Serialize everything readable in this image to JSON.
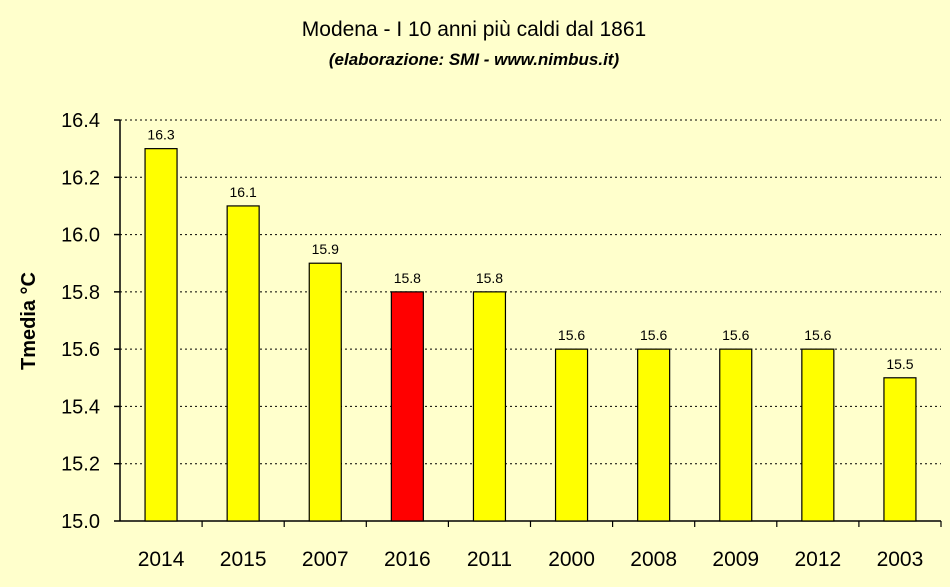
{
  "chart_data": {
    "type": "bar",
    "title": "Modena - I 10 anni più caldi dal 1861",
    "subtitle": "(elaborazione: SMI - www.nimbus.it)",
    "xlabel": "",
    "ylabel": "Tmedia °C",
    "ylim": [
      15.0,
      16.4
    ],
    "yticks": [
      "15.0",
      "15.2",
      "15.4",
      "15.6",
      "15.8",
      "16.0",
      "16.2",
      "16.4"
    ],
    "ytick_values": [
      15.0,
      15.2,
      15.4,
      15.6,
      15.8,
      16.0,
      16.2,
      16.4
    ],
    "categories": [
      "2014",
      "2015",
      "2007",
      "2016",
      "2011",
      "2000",
      "2008",
      "2009",
      "2012",
      "2003"
    ],
    "values": [
      16.3,
      16.1,
      15.9,
      15.8,
      15.8,
      15.6,
      15.6,
      15.6,
      15.6,
      15.5
    ],
    "data_labels": [
      "16.3",
      "16.1",
      "15.9",
      "15.8",
      "15.8",
      "15.6",
      "15.6",
      "15.6",
      "15.6",
      "15.5"
    ],
    "highlight_category": "2016",
    "grid": true,
    "legend": "none",
    "colors": {
      "background": "#FFFFCC",
      "bar": "#FFFF00",
      "highlight_bar": "#FF0000",
      "bar_stroke": "#000000",
      "grid": "#000000"
    }
  }
}
